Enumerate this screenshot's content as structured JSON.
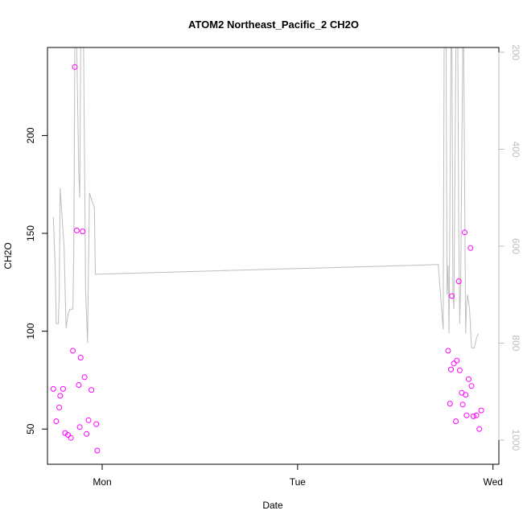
{
  "chart_data": {
    "type": "scatter",
    "title": "ATOM2 Northeast_Pacific_2 CH2O",
    "xlabel": "Date",
    "ylabel": "CH2O",
    "x_ticks": [
      "Mon",
      "Tue",
      "Wed"
    ],
    "xlim_days": [
      -0.28,
      2.03
    ],
    "ylim": [
      32,
      245
    ],
    "y_ticks": [
      50,
      100,
      150,
      200
    ],
    "y2lim": [
      1050,
      190
    ],
    "y2_ticks": [
      200,
      400,
      600,
      800,
      1000
    ],
    "y2_reversed": true,
    "grid": false,
    "colors": {
      "points": "#ff00ff",
      "line": "#bebebe",
      "axis": "#000000",
      "axis_right": "#bebebe"
    },
    "series": [
      {
        "kind": "points",
        "points": [
          [
            -0.25,
            70.5
          ],
          [
            -0.235,
            54
          ],
          [
            -0.22,
            61
          ],
          [
            -0.215,
            67
          ],
          [
            -0.2,
            70.5
          ],
          [
            -0.19,
            48
          ],
          [
            -0.175,
            47
          ],
          [
            -0.16,
            45.5
          ],
          [
            -0.15,
            90
          ],
          [
            -0.14,
            235
          ],
          [
            -0.13,
            151.5
          ],
          [
            -0.12,
            72.5
          ],
          [
            -0.115,
            51
          ],
          [
            -0.11,
            86.5
          ],
          [
            -0.1,
            151
          ],
          [
            -0.09,
            76.5
          ],
          [
            -0.08,
            47.5
          ],
          [
            -0.07,
            54.5
          ],
          [
            -0.055,
            70
          ],
          [
            -0.03,
            52.5
          ],
          [
            -0.025,
            39
          ],
          [
            1.77,
            90
          ],
          [
            1.78,
            63
          ],
          [
            1.785,
            80.5
          ],
          [
            1.79,
            118
          ],
          [
            1.8,
            83.5
          ],
          [
            1.81,
            54
          ],
          [
            1.815,
            85
          ],
          [
            1.825,
            125.5
          ],
          [
            1.83,
            80
          ],
          [
            1.84,
            68.5
          ],
          [
            1.845,
            62.5
          ],
          [
            1.855,
            150.5
          ],
          [
            1.86,
            67.5
          ],
          [
            1.865,
            57
          ],
          [
            1.875,
            75.5
          ],
          [
            1.885,
            142.5
          ],
          [
            1.89,
            72
          ],
          [
            1.9,
            56.5
          ],
          [
            1.915,
            57
          ],
          [
            1.93,
            50
          ],
          [
            1.94,
            59.5
          ]
        ]
      },
      {
        "kind": "line",
        "axis": "right",
        "points": [
          [
            -0.25,
            540
          ],
          [
            -0.24,
            650
          ],
          [
            -0.235,
            760
          ],
          [
            -0.225,
            760
          ],
          [
            -0.22,
            700
          ],
          [
            -0.215,
            480
          ],
          [
            -0.205,
            540
          ],
          [
            -0.195,
            600
          ],
          [
            -0.185,
            770
          ],
          [
            -0.175,
            740
          ],
          [
            -0.165,
            730
          ],
          [
            -0.15,
            730
          ],
          [
            -0.145,
            600
          ],
          [
            -0.14,
            190
          ],
          [
            -0.13,
            190
          ],
          [
            -0.12,
            450
          ],
          [
            -0.115,
            500
          ],
          [
            -0.11,
            190
          ],
          [
            -0.095,
            190
          ],
          [
            -0.085,
            690
          ],
          [
            -0.075,
            800
          ],
          [
            -0.065,
            490
          ],
          [
            -0.05,
            510
          ],
          [
            -0.04,
            520
          ],
          [
            -0.035,
            658
          ],
          [
            1.72,
            638
          ],
          [
            1.745,
            772
          ],
          [
            1.75,
            190
          ],
          [
            1.76,
            190
          ],
          [
            1.765,
            700
          ],
          [
            1.77,
            640
          ],
          [
            1.775,
            780
          ],
          [
            1.785,
            190
          ],
          [
            1.79,
            190
          ],
          [
            1.795,
            700
          ],
          [
            1.8,
            730
          ],
          [
            1.81,
            190
          ],
          [
            1.82,
            190
          ],
          [
            1.825,
            580
          ],
          [
            1.83,
            760
          ],
          [
            1.835,
            670
          ],
          [
            1.845,
            190
          ],
          [
            1.85,
            190
          ],
          [
            1.86,
            780
          ],
          [
            1.865,
            720
          ],
          [
            1.87,
            700
          ],
          [
            1.88,
            730
          ],
          [
            1.89,
            810
          ],
          [
            1.905,
            810
          ],
          [
            1.915,
            790
          ],
          [
            1.925,
            780
          ]
        ]
      }
    ]
  }
}
